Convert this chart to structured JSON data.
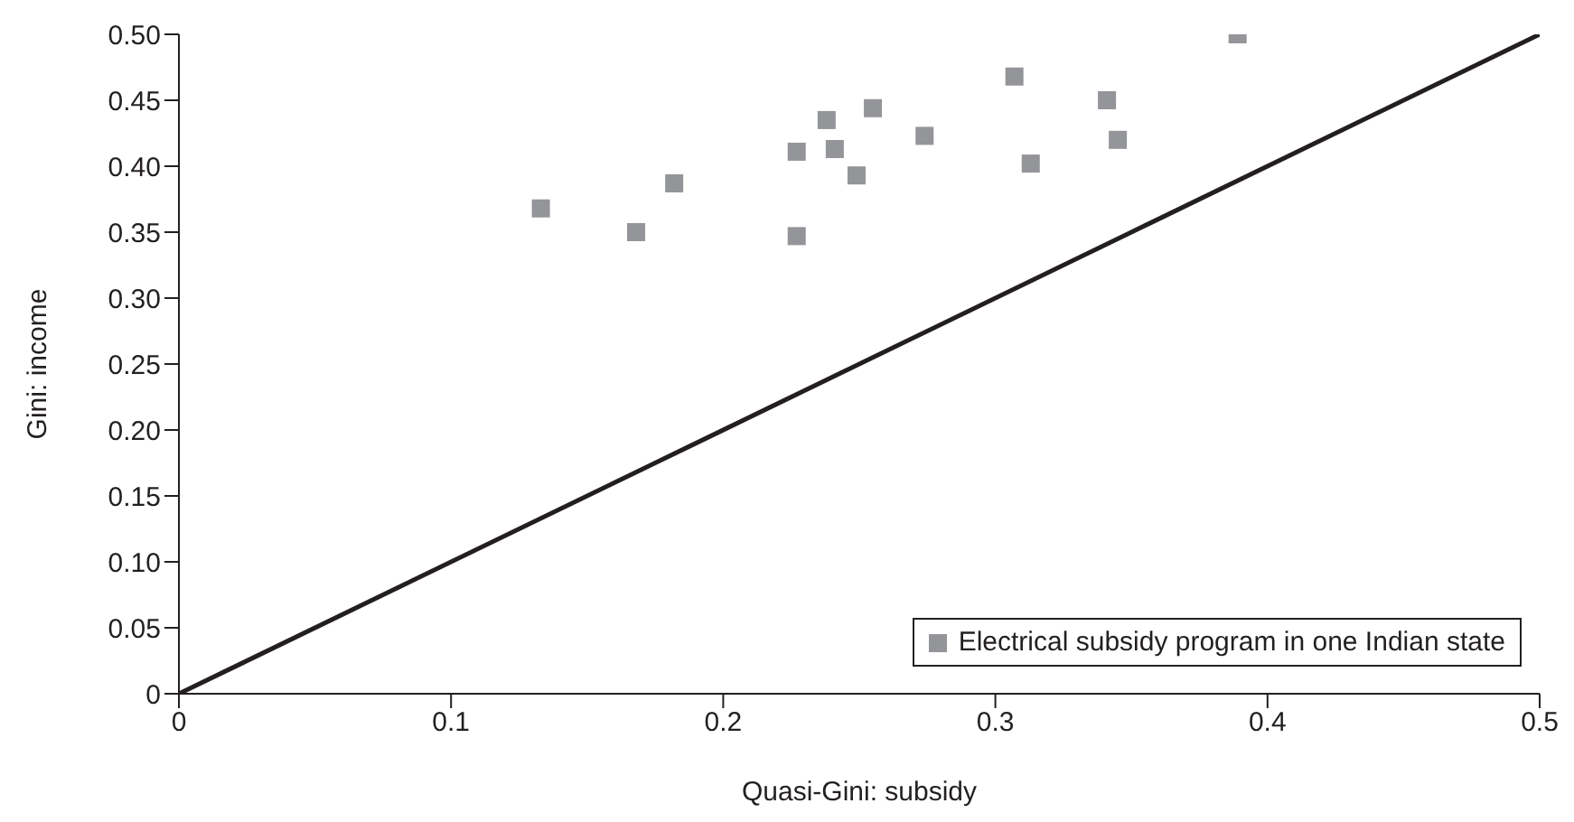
{
  "chart_data": {
    "type": "scatter",
    "xlabel": "Quasi-Gini: subsidy",
    "ylabel": "Gini: income",
    "xlim": [
      0,
      0.5
    ],
    "xticks": [
      0,
      0.1,
      0.2,
      0.3,
      0.4,
      0.5
    ],
    "ylim": [
      0,
      0.5
    ],
    "yticks": [
      0,
      0.05,
      {
        "value": 0.1,
        "label": "0.10"
      },
      0.15,
      {
        "value": 0.2,
        "label": "0.20"
      },
      0.25,
      {
        "value": 0.3,
        "label": "0.30"
      },
      0.35,
      {
        "value": 0.4,
        "label": "0.40"
      },
      0.45,
      {
        "value": 0.5,
        "label": "0.50"
      }
    ],
    "grid": false,
    "legend": "bottom right",
    "series": [
      {
        "name": "Electrical subsidy program in one Indian state",
        "color": "#939598",
        "marker": "square",
        "x": [
          0.133,
          0.168,
          0.182,
          0.227,
          0.227,
          0.238,
          0.241,
          0.249,
          0.255,
          0.274,
          0.307,
          0.313,
          0.341,
          0.345,
          0.389
        ],
        "values": [
          0.368,
          0.35,
          0.387,
          0.411,
          0.347,
          0.435,
          0.413,
          0.393,
          0.444,
          0.423,
          0.468,
          0.402,
          0.45,
          0.42,
          0.5
        ]
      },
      {
        "type": "line",
        "color": "#231f20",
        "line_style": "solid",
        "x": [
          0,
          0.5
        ],
        "values": [
          0,
          0.5
        ]
      }
    ]
  }
}
